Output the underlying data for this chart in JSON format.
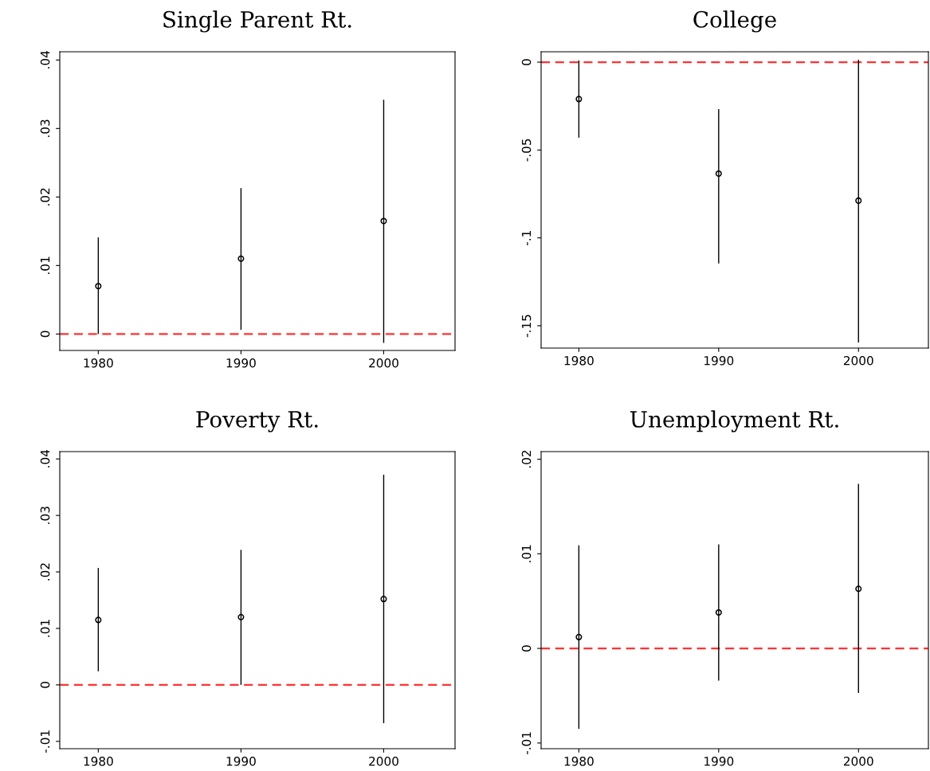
{
  "chart_data": [
    {
      "type": "scatter",
      "title": "Single Parent Rt.",
      "x": [
        1980,
        1990,
        2000
      ],
      "xlim": [
        1977.3,
        2005
      ],
      "xticks": [
        1980,
        1990,
        2000
      ],
      "ylim": [
        -0.0024,
        0.0412
      ],
      "yticks": [
        {
          "value": 0,
          "label": "0"
        },
        {
          "value": 0.01,
          "label": ".01"
        },
        {
          "value": 0.02,
          "label": ".02"
        },
        {
          "value": 0.03,
          "label": ".03"
        },
        {
          "value": 0.04,
          "label": ".04"
        }
      ],
      "marker": "circle",
      "grid": false,
      "series": [
        {
          "color": "#000000",
          "values": [
            0.007,
            0.011,
            0.0165
          ],
          "errors": [
            [
              0.0,
              0.0141
            ],
            [
              0.0006,
              0.0213
            ],
            [
              -0.0013,
              0.0342
            ]
          ]
        }
      ],
      "ref_lines": [
        {
          "axis": "y",
          "value": 0,
          "color": "#ff3333",
          "line_style": "dashed"
        }
      ]
    },
    {
      "type": "scatter",
      "title": "College",
      "x": [
        1980,
        1990,
        2000
      ],
      "xlim": [
        1977.3,
        2005
      ],
      "xticks": [
        1980,
        1990,
        2000
      ],
      "ylim": [
        -0.1627,
        0.0059
      ],
      "yticks": [
        {
          "value": -0.15,
          "label": "-.15"
        },
        {
          "value": -0.1,
          "label": "-.1"
        },
        {
          "value": -0.05,
          "label": "-.05"
        },
        {
          "value": 0,
          "label": "0"
        }
      ],
      "marker": "circle",
      "grid": false,
      "series": [
        {
          "color": "#000000",
          "values": [
            -0.021,
            -0.0634,
            -0.0788
          ],
          "errors": [
            [
              -0.043,
              0.001
            ],
            [
              -0.1146,
              -0.0267
            ],
            [
              -0.1595,
              0.0014
            ]
          ]
        }
      ],
      "ref_lines": [
        {
          "axis": "y",
          "value": 0,
          "color": "#ff3333",
          "line_style": "dashed"
        }
      ]
    },
    {
      "type": "scatter",
      "title": "Poverty Rt.",
      "x": [
        1980,
        1990,
        2000
      ],
      "xlim": [
        1977.3,
        2005
      ],
      "xticks": [
        1980,
        1990,
        2000
      ],
      "ylim": [
        -0.0113,
        0.0413
      ],
      "yticks": [
        {
          "value": -0.01,
          "label": "-.01"
        },
        {
          "value": 0,
          "label": "0"
        },
        {
          "value": 0.01,
          "label": ".01"
        },
        {
          "value": 0.02,
          "label": ".02"
        },
        {
          "value": 0.03,
          "label": ".03"
        },
        {
          "value": 0.04,
          "label": ".04"
        }
      ],
      "marker": "circle",
      "grid": false,
      "series": [
        {
          "color": "#000000",
          "values": [
            0.0115,
            0.012,
            0.0152
          ],
          "errors": [
            [
              0.0024,
              0.0207
            ],
            [
              0.0,
              0.0239
            ],
            [
              -0.0068,
              0.0372
            ]
          ]
        }
      ],
      "ref_lines": [
        {
          "axis": "y",
          "value": 0,
          "color": "#ff3333",
          "line_style": "dashed"
        }
      ]
    },
    {
      "type": "scatter",
      "title": "Unemployment Rt.",
      "x": [
        1980,
        1990,
        2000
      ],
      "xlim": [
        1977.3,
        2005
      ],
      "xticks": [
        1980,
        1990,
        2000
      ],
      "ylim": [
        -0.0106,
        0.0208
      ],
      "yticks": [
        {
          "value": -0.01,
          "label": "-.01"
        },
        {
          "value": 0,
          "label": "0"
        },
        {
          "value": 0.01,
          "label": ".01"
        },
        {
          "value": 0.02,
          "label": ".02"
        }
      ],
      "marker": "circle",
      "grid": false,
      "series": [
        {
          "color": "#000000",
          "values": [
            0.0012,
            0.0038,
            0.0063
          ],
          "errors": [
            [
              -0.0085,
              0.0109
            ],
            [
              -0.0034,
              0.011
            ],
            [
              -0.0047,
              0.0174
            ]
          ]
        }
      ],
      "ref_lines": [
        {
          "axis": "y",
          "value": 0,
          "color": "#ff3333",
          "line_style": "dashed"
        }
      ]
    }
  ]
}
